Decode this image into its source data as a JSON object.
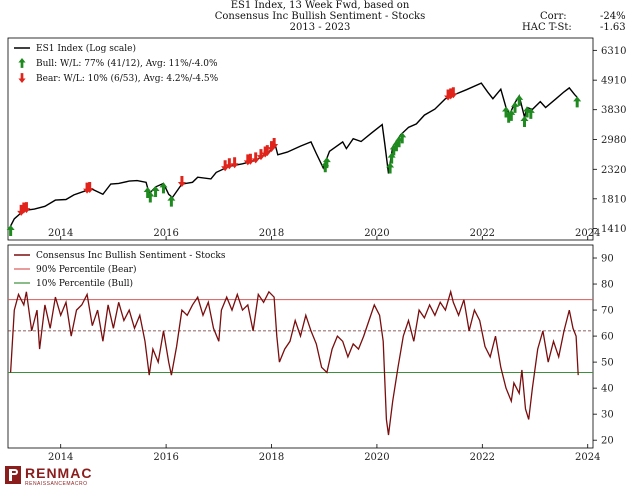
{
  "header": {
    "title_lines": [
      "ES1 Index, 13 Week Fwd, based on",
      "Consensus Inc Bullish Sentiment - Stocks",
      "2013 - 2023"
    ],
    "corr_label": "Corr:",
    "corr_value": "-24%",
    "hac_label": "HAC T-St:",
    "hac_value": "-1.63"
  },
  "logo": {
    "name": "RENMAC",
    "tagline": "RENAISSANCEMACRO"
  },
  "colors": {
    "price": "#000000",
    "sentiment": "#7a0d0d",
    "bear": "#e0241b",
    "bull": "#1f8a1f",
    "bear_line": "#d85a5a",
    "bull_line": "#3c8f3c"
  },
  "chart_data": [
    {
      "type": "line",
      "scale": "log",
      "legend": {
        "position": "top-left",
        "entries": [
          {
            "key": "price",
            "label": "ES1 Index (Log scale)"
          },
          {
            "key": "bull",
            "label": "Bull:   W/L: 77% (41/12), Avg: 11%/-4.0%"
          },
          {
            "key": "bear",
            "label": "Bear:   W/L: 10% (6/53), Avg: 4.2%/-4.5%"
          }
        ]
      },
      "xlim": [
        2013.0,
        2024.1
      ],
      "ylim": [
        1280,
        7000
      ],
      "x_ticks": [
        "2014",
        "2016",
        "2018",
        "2020",
        "2022",
        "2024"
      ],
      "y_ticks": [
        1410,
        1810,
        2320,
        2980,
        3830,
        4910,
        6310
      ],
      "series": [
        {
          "name": "ES1 Index (Log scale)",
          "points": [
            [
              2013.05,
              1440
            ],
            [
              2013.12,
              1530
            ],
            [
              2013.3,
              1640
            ],
            [
              2013.5,
              1660
            ],
            [
              2013.7,
              1700
            ],
            [
              2013.9,
              1790
            ],
            [
              2014.1,
              1800
            ],
            [
              2014.25,
              1870
            ],
            [
              2014.45,
              1930
            ],
            [
              2014.6,
              1960
            ],
            [
              2014.8,
              1880
            ],
            [
              2014.95,
              2050
            ],
            [
              2015.1,
              2060
            ],
            [
              2015.3,
              2100
            ],
            [
              2015.45,
              2110
            ],
            [
              2015.62,
              2080
            ],
            [
              2015.68,
              1890
            ],
            [
              2015.8,
              2000
            ],
            [
              2015.95,
              2060
            ],
            [
              2016.05,
              1880
            ],
            [
              2016.12,
              1830
            ],
            [
              2016.3,
              2050
            ],
            [
              2016.5,
              2080
            ],
            [
              2016.6,
              2170
            ],
            [
              2016.85,
              2140
            ],
            [
              2016.95,
              2260
            ],
            [
              2017.2,
              2380
            ],
            [
              2017.45,
              2430
            ],
            [
              2017.7,
              2500
            ],
            [
              2017.95,
              2680
            ],
            [
              2018.07,
              2850
            ],
            [
              2018.12,
              2620
            ],
            [
              2018.3,
              2680
            ],
            [
              2018.55,
              2820
            ],
            [
              2018.75,
              2920
            ],
            [
              2018.85,
              2650
            ],
            [
              2018.98,
              2350
            ],
            [
              2019.1,
              2700
            ],
            [
              2019.35,
              2920
            ],
            [
              2019.42,
              2760
            ],
            [
              2019.55,
              3000
            ],
            [
              2019.7,
              2930
            ],
            [
              2019.9,
              3150
            ],
            [
              2020.1,
              3380
            ],
            [
              2020.15,
              2870
            ],
            [
              2020.22,
              2240
            ],
            [
              2020.3,
              2800
            ],
            [
              2020.45,
              3100
            ],
            [
              2020.6,
              3300
            ],
            [
              2020.75,
              3400
            ],
            [
              2020.9,
              3660
            ],
            [
              2021.1,
              3850
            ],
            [
              2021.3,
              4200
            ],
            [
              2021.5,
              4370
            ],
            [
              2021.7,
              4530
            ],
            [
              2021.98,
              4790
            ],
            [
              2022.1,
              4450
            ],
            [
              2022.2,
              4200
            ],
            [
              2022.35,
              4550
            ],
            [
              2022.45,
              3900
            ],
            [
              2022.52,
              3670
            ],
            [
              2022.6,
              4000
            ],
            [
              2022.7,
              4300
            ],
            [
              2022.8,
              3600
            ],
            [
              2022.85,
              3900
            ],
            [
              2022.95,
              3840
            ],
            [
              2023.1,
              4100
            ],
            [
              2023.2,
              3900
            ],
            [
              2023.4,
              4200
            ],
            [
              2023.55,
              4450
            ],
            [
              2023.65,
              4600
            ],
            [
              2023.75,
              4350
            ],
            [
              2023.8,
              4250
            ]
          ]
        }
      ],
      "bear_signals": [
        2013.25,
        2013.3,
        2013.35,
        2014.5,
        2014.55,
        2016.3,
        2017.12,
        2017.2,
        2017.3,
        2017.55,
        2017.6,
        2017.7,
        2017.8,
        2017.88,
        2017.92,
        2018.0,
        2018.05,
        2021.35,
        2021.4,
        2021.45
      ],
      "bull_signals": [
        2013.05,
        2015.65,
        2015.7,
        2015.8,
        2015.95,
        2016.1,
        2019.02,
        2019.05,
        2020.25,
        2020.28,
        2020.32,
        2020.37,
        2020.42,
        2020.48,
        2022.45,
        2022.5,
        2022.55,
        2022.62,
        2022.7,
        2022.8,
        2022.85,
        2022.92,
        2023.8
      ]
    },
    {
      "type": "line",
      "legend": {
        "position": "top-left",
        "entries": [
          {
            "key": "sentiment",
            "label": "Consensus Inc Bullish Sentiment - Stocks"
          },
          {
            "key": "bear_line",
            "label": "90% Percentile (Bear)"
          },
          {
            "key": "bull_line",
            "label": "10% Percentile (Bull)"
          }
        ]
      },
      "xlim": [
        2013.0,
        2024.1
      ],
      "ylim": [
        17,
        95
      ],
      "x_ticks": [
        "2014",
        "2016",
        "2018",
        "2020",
        "2022",
        "2024"
      ],
      "y_ticks": [
        20,
        30,
        40,
        50,
        60,
        70,
        80,
        90
      ],
      "bear_threshold": 74,
      "bull_threshold": 46,
      "median": 62,
      "series": [
        {
          "name": "Consensus Inc Bullish Sentiment - Stocks",
          "points": [
            [
              2013.05,
              46
            ],
            [
              2013.12,
              70
            ],
            [
              2013.2,
              76
            ],
            [
              2013.3,
              72
            ],
            [
              2013.35,
              77
            ],
            [
              2013.45,
              62
            ],
            [
              2013.55,
              70
            ],
            [
              2013.6,
              55
            ],
            [
              2013.7,
              72
            ],
            [
              2013.8,
              63
            ],
            [
              2013.9,
              75
            ],
            [
              2014.0,
              68
            ],
            [
              2014.1,
              73
            ],
            [
              2014.2,
              60
            ],
            [
              2014.3,
              70
            ],
            [
              2014.4,
              72
            ],
            [
              2014.5,
              76
            ],
            [
              2014.6,
              64
            ],
            [
              2014.7,
              70
            ],
            [
              2014.8,
              58
            ],
            [
              2014.9,
              72
            ],
            [
              2015.0,
              63
            ],
            [
              2015.1,
              73
            ],
            [
              2015.2,
              66
            ],
            [
              2015.3,
              70
            ],
            [
              2015.4,
              63
            ],
            [
              2015.5,
              68
            ],
            [
              2015.6,
              58
            ],
            [
              2015.68,
              45
            ],
            [
              2015.75,
              55
            ],
            [
              2015.85,
              50
            ],
            [
              2015.95,
              62
            ],
            [
              2016.05,
              50
            ],
            [
              2016.1,
              45
            ],
            [
              2016.2,
              56
            ],
            [
              2016.3,
              70
            ],
            [
              2016.4,
              68
            ],
            [
              2016.5,
              72
            ],
            [
              2016.6,
              75
            ],
            [
              2016.7,
              68
            ],
            [
              2016.8,
              73
            ],
            [
              2016.9,
              63
            ],
            [
              2017.0,
              58
            ],
            [
              2017.05,
              70
            ],
            [
              2017.15,
              75
            ],
            [
              2017.25,
              70
            ],
            [
              2017.35,
              76
            ],
            [
              2017.45,
              70
            ],
            [
              2017.55,
              72
            ],
            [
              2017.65,
              62
            ],
            [
              2017.75,
              76
            ],
            [
              2017.85,
              73
            ],
            [
              2017.95,
              77
            ],
            [
              2018.05,
              75
            ],
            [
              2018.1,
              60
            ],
            [
              2018.15,
              50
            ],
            [
              2018.25,
              55
            ],
            [
              2018.35,
              58
            ],
            [
              2018.45,
              66
            ],
            [
              2018.55,
              60
            ],
            [
              2018.65,
              68
            ],
            [
              2018.75,
              62
            ],
            [
              2018.85,
              57
            ],
            [
              2018.95,
              48
            ],
            [
              2019.05,
              46
            ],
            [
              2019.15,
              55
            ],
            [
              2019.25,
              60
            ],
            [
              2019.35,
              58
            ],
            [
              2019.45,
              52
            ],
            [
              2019.55,
              57
            ],
            [
              2019.65,
              55
            ],
            [
              2019.75,
              60
            ],
            [
              2019.85,
              66
            ],
            [
              2019.95,
              72
            ],
            [
              2020.05,
              68
            ],
            [
              2020.12,
              58
            ],
            [
              2020.18,
              28
            ],
            [
              2020.22,
              22
            ],
            [
              2020.3,
              35
            ],
            [
              2020.4,
              48
            ],
            [
              2020.5,
              60
            ],
            [
              2020.6,
              66
            ],
            [
              2020.7,
              58
            ],
            [
              2020.8,
              70
            ],
            [
              2020.9,
              67
            ],
            [
              2021.0,
              72
            ],
            [
              2021.1,
              68
            ],
            [
              2021.2,
              73
            ],
            [
              2021.3,
              70
            ],
            [
              2021.4,
              77
            ],
            [
              2021.45,
              73
            ],
            [
              2021.55,
              68
            ],
            [
              2021.65,
              74
            ],
            [
              2021.75,
              62
            ],
            [
              2021.85,
              70
            ],
            [
              2021.95,
              66
            ],
            [
              2022.05,
              56
            ],
            [
              2022.15,
              52
            ],
            [
              2022.25,
              60
            ],
            [
              2022.35,
              48
            ],
            [
              2022.45,
              40
            ],
            [
              2022.55,
              35
            ],
            [
              2022.6,
              42
            ],
            [
              2022.7,
              38
            ],
            [
              2022.75,
              47
            ],
            [
              2022.82,
              32
            ],
            [
              2022.88,
              28
            ],
            [
              2022.95,
              40
            ],
            [
              2023.05,
              55
            ],
            [
              2023.15,
              62
            ],
            [
              2023.25,
              50
            ],
            [
              2023.35,
              58
            ],
            [
              2023.45,
              52
            ],
            [
              2023.55,
              62
            ],
            [
              2023.65,
              70
            ],
            [
              2023.72,
              63
            ],
            [
              2023.78,
              60
            ],
            [
              2023.82,
              45
            ]
          ]
        }
      ]
    }
  ]
}
